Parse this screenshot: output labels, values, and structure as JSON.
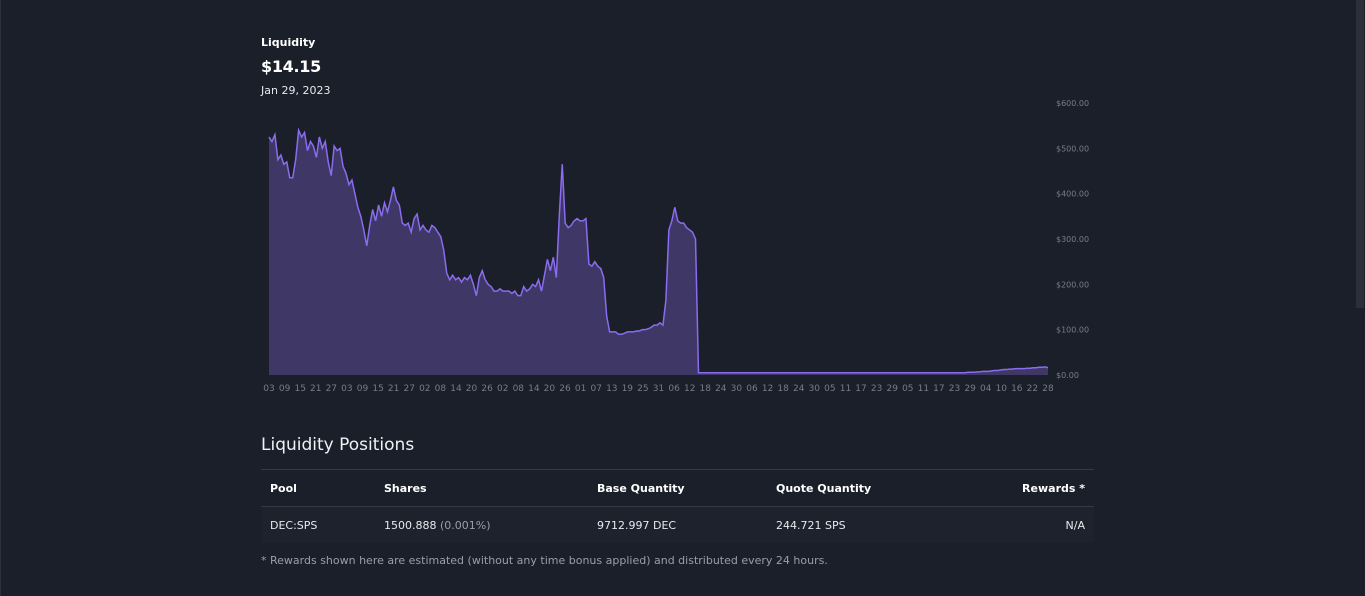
{
  "liquidity": {
    "label": "Liquidity",
    "value": "$14.15",
    "date": "Jan 29, 2023"
  },
  "chart_data": {
    "type": "area",
    "title": "",
    "xlabel": "",
    "ylabel": "",
    "ylim": [
      0,
      600
    ],
    "grid": false,
    "color": "#8a6cf0",
    "fill_color": "#3f3765",
    "y_ticks": [
      "$600.00",
      "$500.00",
      "$400.00",
      "$300.00",
      "$200.00",
      "$100.00",
      "$0.00"
    ],
    "y_tick_values": [
      600,
      500,
      400,
      300,
      200,
      100,
      0
    ],
    "x_ticks": [
      "03",
      "09",
      "15",
      "21",
      "27",
      "03",
      "09",
      "15",
      "21",
      "27",
      "02",
      "08",
      "14",
      "20",
      "26",
      "02",
      "08",
      "14",
      "20",
      "26",
      "01",
      "07",
      "13",
      "19",
      "25",
      "31",
      "06",
      "12",
      "18",
      "24",
      "30",
      "06",
      "12",
      "18",
      "24",
      "30",
      "05",
      "11",
      "17",
      "23",
      "29",
      "05",
      "11",
      "17",
      "23",
      "29",
      "04",
      "10",
      "16",
      "22",
      "28"
    ],
    "series": [
      {
        "values": [
          525,
          515,
          530,
          475,
          485,
          465,
          470,
          435,
          435,
          475,
          540,
          525,
          535,
          495,
          515,
          505,
          480,
          525,
          500,
          515,
          470,
          440,
          505,
          495,
          500,
          460,
          445,
          420,
          430,
          400,
          370,
          350,
          320,
          285,
          330,
          365,
          340,
          375,
          350,
          380,
          360,
          385,
          415,
          385,
          375,
          335,
          330,
          335,
          315,
          345,
          355,
          320,
          330,
          320,
          315,
          330,
          325,
          315,
          305,
          275,
          225,
          210,
          220,
          210,
          215,
          205,
          215,
          210,
          220,
          200,
          175,
          215,
          230,
          210,
          200,
          195,
          185,
          185,
          190,
          185,
          185,
          185,
          180,
          185,
          175,
          175,
          195,
          185,
          190,
          200,
          195,
          210,
          185,
          220,
          255,
          230,
          260,
          215,
          350,
          465,
          335,
          325,
          330,
          340,
          345,
          340,
          340,
          345,
          245,
          240,
          250,
          240,
          235,
          215,
          130,
          95,
          95,
          95,
          90,
          90,
          92,
          95,
          95,
          95,
          97,
          97,
          100,
          100,
          102,
          105,
          110,
          110,
          115,
          110,
          165,
          320,
          340,
          370,
          340,
          335,
          335,
          325,
          320,
          315,
          300,
          5,
          5,
          5,
          5,
          5,
          5,
          5,
          5,
          5,
          5,
          5,
          5,
          5,
          5,
          5,
          5,
          5,
          5,
          5,
          5,
          5,
          5,
          5,
          5,
          5,
          5,
          5,
          5,
          5,
          5,
          5,
          5,
          5,
          5,
          5,
          5,
          5,
          5,
          5,
          5,
          5,
          5,
          5,
          5,
          5,
          5,
          5,
          5,
          5,
          5,
          5,
          5,
          5,
          5,
          5,
          5,
          5,
          5,
          5,
          5,
          5,
          5,
          5,
          5,
          5,
          5,
          5,
          5,
          5,
          5,
          5,
          5,
          5,
          5,
          5,
          5,
          5,
          5,
          5,
          5,
          5,
          5,
          5,
          5,
          5,
          5,
          5,
          5,
          5,
          5,
          5,
          6,
          6,
          6,
          7,
          7,
          8,
          8,
          8,
          9,
          10,
          10,
          11,
          12,
          12,
          13,
          13,
          14,
          14,
          14,
          14,
          15,
          15,
          16,
          16,
          17,
          17,
          18,
          16
        ]
      }
    ]
  },
  "positions": {
    "title": "Liquidity Positions",
    "columns": [
      "Pool",
      "Shares",
      "Base Quantity",
      "Quote Quantity",
      "Rewards *"
    ],
    "rows": [
      {
        "pool": "DEC:SPS",
        "shares": "1500.888",
        "shares_pct": "(0.001%)",
        "base_quantity": "9712.997 DEC",
        "quote_quantity": "244.721 SPS",
        "rewards": "N/A"
      }
    ],
    "footnote": "* Rewards shown here are estimated (without any time bonus applied) and distributed every 24 hours."
  }
}
